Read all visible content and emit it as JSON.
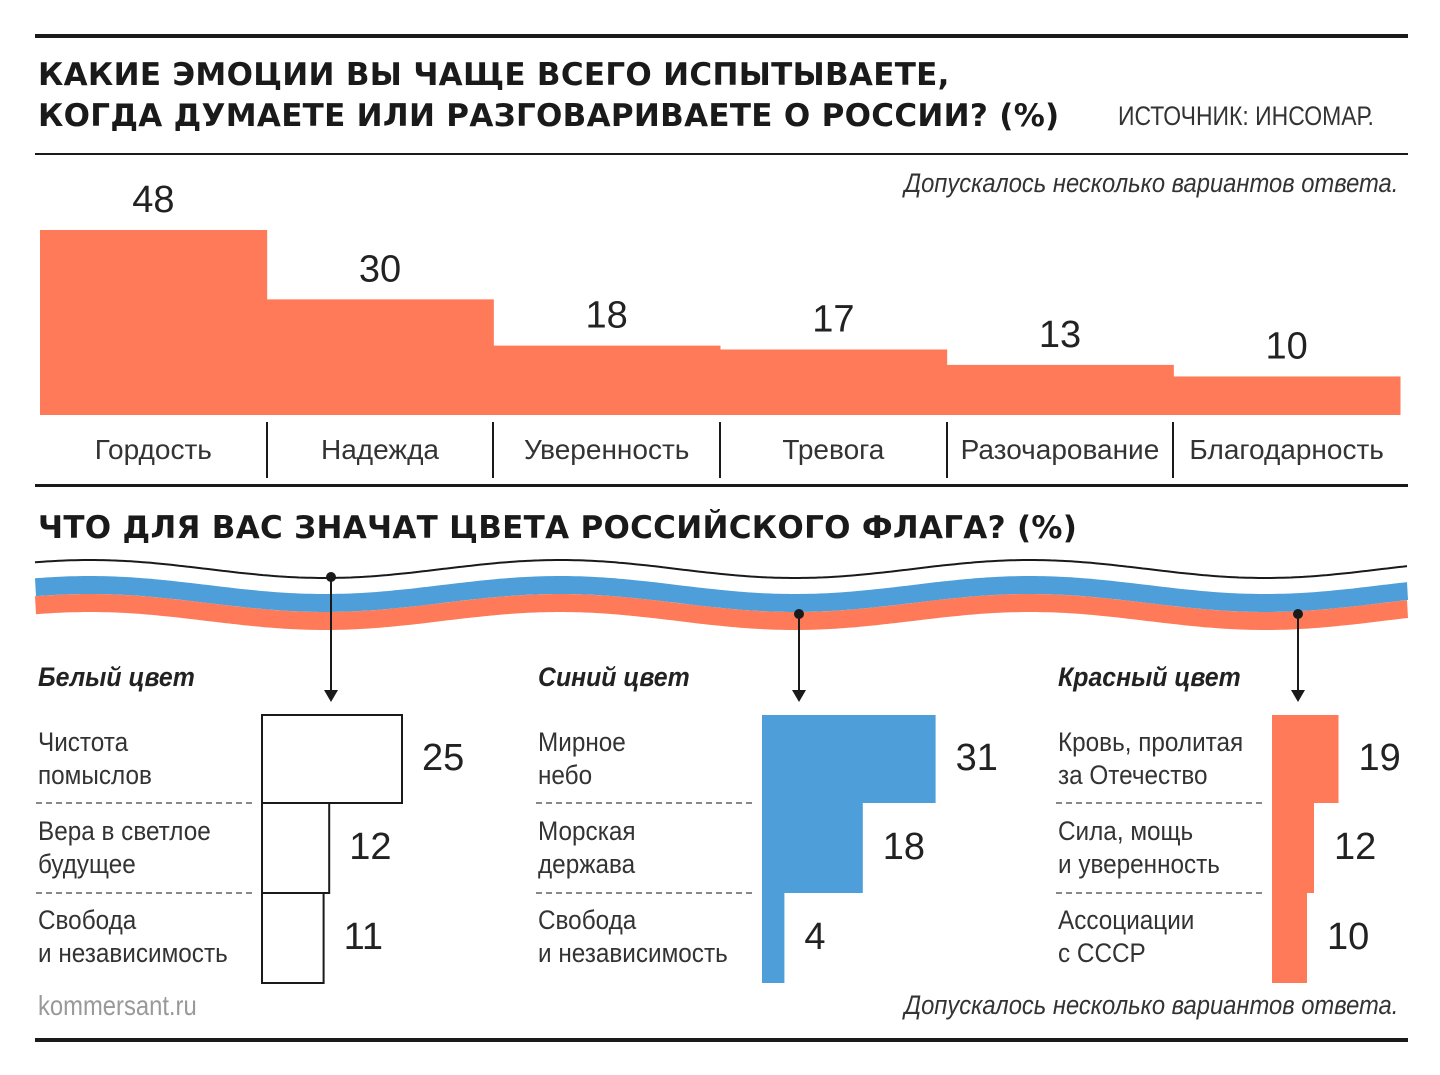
{
  "header": {
    "title_line1": "КАКИЕ ЭМОЦИИ ВЫ ЧАЩЕ ВСЕГО ИСПЫТЫВАЕТЕ,",
    "title_line2": "КОГДА ДУМАЕТЕ ИЛИ РАЗГОВАРИВАЕТЕ О РОССИИ? (%)",
    "source": "ИСТОЧНИК: ИНСОМАР."
  },
  "note_top": "Допускалось несколько вариантов ответа.",
  "section2_title": "ЧТО ДЛЯ ВАС ЗНАЧАТ ЦВЕТА РОССИЙСКОГО ФЛАГА? (%)",
  "note_bottom": "Допускалось несколько вариантов ответа.",
  "footer": "kommersant.ru",
  "colors": {
    "accent": "#ff7a58",
    "blue": "#4e9ed9",
    "white_fill": "#ffffff",
    "rule": "#1a1a1a"
  },
  "chart_data": [
    {
      "type": "bar",
      "categories": [
        "Гордость",
        "Надежда",
        "Уверенность",
        "Тревога",
        "Разочарование",
        "Благодарность"
      ],
      "values": [
        48,
        30,
        18,
        17,
        13,
        10
      ],
      "ylim": [
        0,
        48
      ]
    },
    {
      "type": "bar",
      "title": "Белый цвет",
      "categories": [
        "Чистота\nпомыслов",
        "Вера в светлое\nбудущее",
        "Свобода\nи независимость"
      ],
      "values": [
        25,
        12,
        11
      ],
      "color": "#ffffff"
    },
    {
      "type": "bar",
      "title": "Синий цвет",
      "categories": [
        "Мирное\nнебо",
        "Морская\nдержава",
        "Свобода\nи независимость"
      ],
      "values": [
        31,
        18,
        4
      ],
      "color": "#4e9ed9"
    },
    {
      "type": "bar",
      "title": "Красный цвет",
      "categories": [
        "Кровь, пролитая\nза Отечество",
        "Сила, мощь\nи уверенность",
        "Ассоциации\nс СССР"
      ],
      "values": [
        19,
        12,
        10
      ],
      "color": "#ff7a58"
    }
  ]
}
